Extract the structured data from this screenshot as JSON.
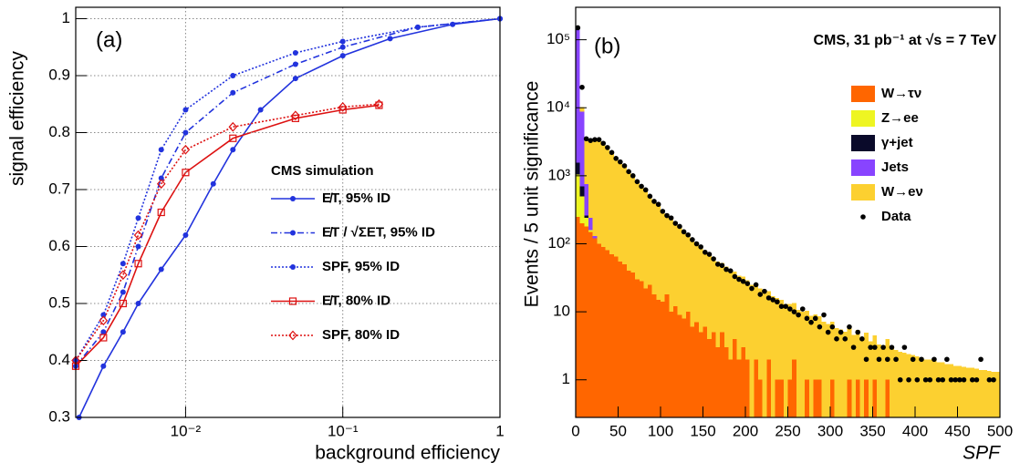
{
  "chart_data": [
    {
      "type": "line",
      "panel": "(a)",
      "xlabel": "background efficiency",
      "ylabel": "signal efficiency",
      "xscale": "log",
      "xlim": [
        0.002,
        1
      ],
      "ylim": [
        0.3,
        1.02
      ],
      "xticks": [
        {
          "value": 0.01,
          "label": "10⁻²"
        },
        {
          "value": 0.1,
          "label": "10⁻¹"
        },
        1
      ],
      "yticks": [
        0.3,
        0.4,
        0.5,
        0.6,
        0.7,
        0.8,
        0.9,
        1
      ],
      "grid": true,
      "legend": "center",
      "legend_title": "CMS simulation",
      "series": [
        {
          "name": "E̸T, 95% ID",
          "color": "#2233dd",
          "style": "solid",
          "marker": "circle",
          "x": [
            0.0021,
            0.003,
            0.004,
            0.005,
            0.007,
            0.01,
            0.015,
            0.02,
            0.03,
            0.05,
            0.1,
            0.2,
            0.5,
            1
          ],
          "values": [
            0.3,
            0.39,
            0.45,
            0.5,
            0.56,
            0.62,
            0.71,
            0.77,
            0.84,
            0.895,
            0.935,
            0.965,
            0.99,
            1
          ]
        },
        {
          "name": "E̸T / √ΣET, 95% ID",
          "color": "#2233dd",
          "style": "dashdot",
          "marker": "circle",
          "x": [
            0.002,
            0.003,
            0.004,
            0.005,
            0.007,
            0.01,
            0.02,
            0.05,
            0.1,
            0.3,
            1
          ],
          "values": [
            0.39,
            0.45,
            0.52,
            0.6,
            0.72,
            0.8,
            0.87,
            0.92,
            0.95,
            0.985,
            1
          ]
        },
        {
          "name": "SPF, 95% ID",
          "color": "#2233dd",
          "style": "dotted",
          "marker": "circle",
          "x": [
            0.002,
            0.003,
            0.004,
            0.005,
            0.007,
            0.01,
            0.02,
            0.05,
            0.1,
            0.3,
            1
          ],
          "values": [
            0.4,
            0.48,
            0.57,
            0.65,
            0.77,
            0.84,
            0.9,
            0.94,
            0.96,
            0.985,
            1
          ]
        },
        {
          "name": "E̸T, 80% ID",
          "color": "#dd1111",
          "style": "solid",
          "marker": "square",
          "x": [
            0.002,
            0.003,
            0.004,
            0.005,
            0.007,
            0.01,
            0.02,
            0.05,
            0.1,
            0.17
          ],
          "values": [
            0.39,
            0.44,
            0.5,
            0.57,
            0.66,
            0.73,
            0.79,
            0.825,
            0.84,
            0.848
          ]
        },
        {
          "name": "SPF, 80% ID",
          "color": "#dd1111",
          "style": "dotted",
          "marker": "diamond",
          "x": [
            0.002,
            0.003,
            0.004,
            0.005,
            0.007,
            0.01,
            0.02,
            0.05,
            0.1,
            0.17
          ],
          "values": [
            0.4,
            0.47,
            0.55,
            0.62,
            0.71,
            0.77,
            0.81,
            0.83,
            0.845,
            0.85
          ]
        }
      ]
    },
    {
      "type": "histogram",
      "stacked": true,
      "panel": "(b)",
      "annotation": "CMS, 31 pb⁻¹  at  √s = 7 TeV",
      "xlabel": "SPF",
      "ylabel": "Events / 5 unit significance",
      "yscale": "log",
      "xlim": [
        0,
        500
      ],
      "ylim": [
        0.28,
        300000
      ],
      "xticks": [
        0,
        50,
        100,
        150,
        200,
        250,
        300,
        350,
        400,
        450,
        500
      ],
      "yticks": [
        1,
        10,
        {
          "value": 100,
          "label": "10²"
        },
        {
          "value": 1000,
          "label": "10³"
        },
        {
          "value": 10000,
          "label": "10⁴"
        },
        {
          "value": 100000,
          "label": "10⁵"
        }
      ],
      "grid": false,
      "legend": "upper right",
      "bins": [
        0,
        5,
        10,
        15,
        20,
        25,
        30,
        35,
        40,
        45,
        50,
        55,
        60,
        65,
        70,
        75,
        80,
        85,
        90,
        95,
        100,
        105,
        110,
        115,
        120,
        125,
        130,
        135,
        140,
        145,
        150,
        155,
        160,
        165,
        170,
        175,
        180,
        185,
        190,
        195,
        200,
        205,
        210,
        215,
        220,
        225,
        230,
        235,
        240,
        245,
        250,
        255,
        260,
        265,
        270,
        275,
        280,
        285,
        290,
        295,
        300,
        305,
        310,
        315,
        320,
        325,
        330,
        335,
        340,
        345,
        350,
        355,
        360,
        365,
        370,
        375,
        380,
        385,
        390,
        395,
        400,
        405,
        410,
        415,
        420,
        425,
        430,
        435,
        440,
        445,
        450,
        455,
        460,
        465,
        470,
        475,
        480,
        485,
        490,
        495,
        500
      ],
      "series": [
        {
          "name": "W→τν",
          "color": "#ff6600",
          "values": [
            250,
            200,
            180,
            150,
            120,
            100,
            90,
            80,
            70,
            65,
            55,
            50,
            40,
            38,
            30,
            28,
            22,
            25,
            18,
            15,
            14,
            18,
            10,
            12,
            9,
            8,
            10,
            6,
            7,
            5,
            6,
            4,
            5,
            3,
            5,
            3,
            2,
            4,
            2,
            3,
            2,
            0,
            2,
            1,
            0,
            2,
            0,
            1,
            1,
            0,
            1,
            2,
            0,
            0,
            1,
            0,
            1,
            1,
            0,
            0,
            1,
            0,
            0,
            0,
            1,
            0,
            1,
            0,
            1,
            0,
            1,
            0,
            0,
            1,
            0,
            0,
            0,
            0,
            0,
            0,
            0,
            0,
            0,
            0,
            0,
            0,
            0,
            0,
            0,
            0,
            0,
            0,
            0,
            0,
            0,
            0,
            0,
            0,
            0,
            0
          ]
        },
        {
          "name": "Z→ee",
          "color": "#eef522",
          "values": [
            800,
            300,
            60,
            10,
            0,
            0,
            0,
            0,
            0,
            0,
            0,
            0,
            0,
            0,
            0,
            0,
            0,
            0,
            0,
            0,
            0,
            0,
            0,
            0,
            0,
            0,
            0,
            0,
            0,
            0,
            0,
            0,
            0,
            0,
            0,
            0,
            0,
            0,
            0,
            0,
            0,
            0,
            0,
            0,
            0,
            0,
            0,
            0,
            0,
            0,
            0,
            0,
            0,
            0,
            0,
            0,
            0,
            0,
            0,
            0,
            0,
            0,
            0,
            0,
            0,
            0,
            0,
            0,
            0,
            0,
            0,
            0,
            0,
            0,
            0,
            0,
            0,
            0,
            0,
            0,
            0,
            0,
            0,
            0,
            0,
            0,
            0,
            0,
            0,
            0,
            0,
            0,
            0,
            0,
            0,
            0,
            0,
            0,
            0,
            0
          ]
        },
        {
          "name": "γ+jet",
          "color": "#0a0a2a",
          "values": [
            500,
            200,
            20,
            0,
            0,
            0,
            0,
            0,
            0,
            0,
            0,
            0,
            0,
            0,
            0,
            0,
            0,
            0,
            0,
            0,
            0,
            0,
            0,
            0,
            0,
            0,
            0,
            0,
            0,
            0,
            0,
            0,
            0,
            0,
            0,
            0,
            0,
            0,
            0,
            0,
            0,
            0,
            0,
            0,
            0,
            0,
            0,
            0,
            0,
            0,
            0,
            0,
            0,
            0,
            0,
            0,
            0,
            0,
            0,
            0,
            0,
            0,
            0,
            0,
            0,
            0,
            0,
            0,
            0,
            0,
            0,
            0,
            0,
            0,
            0,
            0,
            0,
            0,
            0,
            0,
            0,
            0,
            0,
            0,
            0,
            0,
            0,
            0,
            0,
            0,
            0,
            0,
            0,
            0,
            0,
            0,
            0,
            0,
            0,
            0
          ]
        },
        {
          "name": "Jets",
          "color": "#8844ff",
          "values": [
            140000,
            8000,
            500,
            80,
            10,
            0,
            0,
            0,
            0,
            0,
            0,
            0,
            0,
            0,
            0,
            0,
            0,
            0,
            0,
            0,
            0,
            0,
            0,
            0,
            0,
            0,
            0,
            0,
            0,
            0,
            0,
            0,
            0,
            0,
            0,
            0,
            0,
            0,
            0,
            0,
            0,
            0,
            0,
            0,
            0,
            0,
            0,
            0,
            0,
            0,
            0,
            0,
            0,
            0,
            0,
            0,
            0,
            0,
            0,
            0,
            0,
            0,
            0,
            0,
            0,
            0,
            0,
            0,
            0,
            0,
            0,
            0,
            0,
            0,
            0,
            0,
            0,
            0,
            0,
            0,
            0,
            0,
            0,
            0,
            0,
            0,
            0,
            0,
            0,
            0,
            0,
            0,
            0,
            0,
            0,
            0,
            0,
            0,
            0,
            0
          ]
        },
        {
          "name": "W→eν",
          "color": "#fcd030",
          "values": [
            500,
            1500,
            2500,
            2900,
            3100,
            3300,
            2800,
            2450,
            2100,
            1780,
            1580,
            1350,
            1120,
            950,
            800,
            680,
            575,
            490,
            415,
            355,
            295,
            257,
            224,
            195,
            170,
            148,
            129,
            112,
            98,
            85,
            74,
            66,
            59,
            52,
            47,
            43,
            39,
            35,
            32,
            30,
            27,
            25,
            23,
            21,
            19,
            18,
            17,
            15,
            14,
            13,
            12,
            11.5,
            10.7,
            10,
            9.3,
            8.7,
            8.1,
            7.6,
            7.1,
            6.6,
            6.2,
            5.8,
            5.5,
            5.1,
            4.9,
            4.6,
            4.4,
            4.1,
            3.9,
            3.7,
            3.5,
            3.3,
            3.2,
            3,
            2.9,
            2.75,
            2.6,
            2.5,
            2.4,
            2.3,
            2.2,
            2.1,
            2,
            2,
            1.9,
            1.8,
            1.8,
            1.7,
            1.7,
            1.6,
            1.6,
            1.55,
            1.5,
            1.5,
            1.45,
            1.4,
            1.4,
            1.35,
            1.3,
            1.3
          ]
        }
      ],
      "data": {
        "name": "Data",
        "color": "#000000",
        "values": [
          150000,
          20000,
          3500,
          3300,
          3400,
          3400,
          3000,
          2600,
          2200,
          1800,
          1600,
          1400,
          1150,
          1000,
          820,
          700,
          620,
          500,
          420,
          380,
          300,
          260,
          240,
          200,
          180,
          150,
          135,
          115,
          100,
          90,
          75,
          70,
          60,
          50,
          48,
          42,
          40,
          33,
          30,
          28,
          26,
          22,
          25,
          18,
          20,
          16,
          15,
          14,
          12,
          12,
          11,
          10,
          9,
          11,
          8,
          7,
          8,
          6,
          9,
          5,
          6,
          4,
          5,
          4,
          6,
          3,
          5,
          4,
          2,
          3,
          3,
          2,
          3,
          2,
          3,
          2,
          1,
          3,
          1,
          2,
          1,
          2,
          1,
          1,
          2,
          1,
          1,
          2,
          1,
          1,
          1,
          1,
          0,
          1,
          1,
          2,
          0,
          1,
          1,
          0
        ]
      }
    }
  ]
}
